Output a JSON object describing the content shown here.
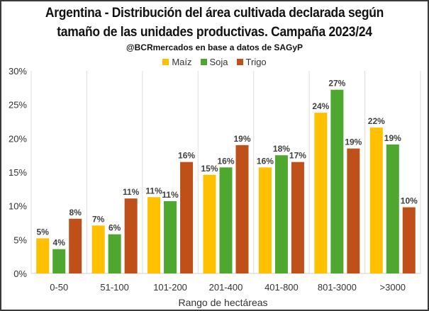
{
  "chart_data": {
    "type": "bar",
    "title": "Argentina - Distribución del área cultivada declarada según tamaño de las unidades productivas. Campaña 2023/24",
    "title_lines": [
      "Argentina - Distribución del área cultivada declarada según",
      "tamaño de las unidades productivas. Campaña 2023/24"
    ],
    "subtitle": "@BCRmercados en base a datos de SAGyP",
    "xlabel": "Rango de hectáreas",
    "ylabel": "",
    "ylim": [
      0,
      30
    ],
    "yticks": [
      0,
      5,
      10,
      15,
      20,
      25,
      30
    ],
    "ytick_labels": [
      "0%",
      "5%",
      "10%",
      "15%",
      "20%",
      "25%",
      "30%"
    ],
    "categories": [
      "0-50",
      "51-100",
      "101-200",
      "201-400",
      "401-800",
      "801-3000",
      ">3000"
    ],
    "legend_position": "top-center",
    "grid": "vertical separators between categories",
    "series": [
      {
        "name": "Maíz",
        "color": "#FFC000",
        "values": [
          5.2,
          7.1,
          11.3,
          14.6,
          15.7,
          23.8,
          21.6
        ],
        "labels": [
          "5%",
          "7%",
          "11%",
          "15%",
          "16%",
          "24%",
          "22%"
        ]
      },
      {
        "name": "Soja",
        "color": "#4EA72E",
        "values": [
          3.6,
          5.8,
          10.7,
          15.7,
          17.5,
          27.2,
          19.1
        ],
        "labels": [
          "4%",
          "6%",
          "11%",
          "16%",
          "18%",
          "27%",
          "19%"
        ]
      },
      {
        "name": "Trigo",
        "color": "#C0501A",
        "values": [
          8.1,
          11.1,
          16.5,
          19.0,
          16.5,
          18.5,
          9.8
        ],
        "labels": [
          "8%",
          "11%",
          "16%",
          "19%",
          "17%",
          "19%",
          "10%"
        ]
      }
    ]
  }
}
